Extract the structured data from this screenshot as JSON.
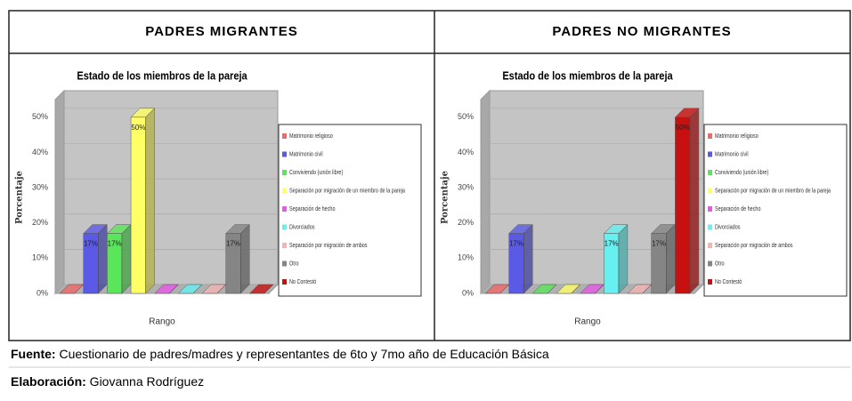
{
  "table": {
    "headers": [
      "PADRES MIGRANTES",
      "PADRES NO MIGRANTES"
    ],
    "charts": [
      {
        "chart_data": {
          "type": "bar3d",
          "title": "Estado de los miembros de la pareja",
          "x_label": "Rango",
          "y_label": "Porcentaje",
          "categories": [
            "Matrimonio religioso",
            "Matrimonio civil",
            "Conviviendo (unión libre)",
            "Separación por migración de un miembro de la pareja",
            "Separación de hecho",
            "Divorciados",
            "Separación por migración de ambos",
            "Otro",
            "No Contestó"
          ],
          "colors": [
            "#f06868",
            "#5a5ae6",
            "#5ae65a",
            "#ffff66",
            "#e65ae6",
            "#66f0f0",
            "#f4b4b4",
            "#858585",
            "#c81010"
          ],
          "values": [
            0,
            17,
            17,
            50,
            0,
            0,
            0,
            17,
            0
          ],
          "value_labels": [
            null,
            "17%",
            "17%",
            "50%",
            null,
            null,
            null,
            "17%",
            null
          ],
          "ylim": [
            0,
            55
          ],
          "yticks": [
            {
              "value": 0,
              "label": "0%"
            },
            {
              "value": 10,
              "label": "10%"
            },
            {
              "value": 20,
              "label": "20%"
            },
            {
              "value": 30,
              "label": "30%"
            },
            {
              "value": 40,
              "label": "40%"
            },
            {
              "value": 50,
              "label": "50%"
            }
          ],
          "grid": true
        }
      },
      {
        "chart_data": {
          "type": "bar3d",
          "title": "Estado de los miembros de la pareja",
          "x_label": "Rango",
          "y_label": "Porcentaje",
          "categories": [
            "Matrimonio religioso",
            "Matrimonio civil",
            "Conviviendo (unión libre)",
            "Separación por migración de un miembro de la pareja",
            "Separación de hecho",
            "Divorciados",
            "Separación por migración de ambos",
            "Otro",
            "No Contestó"
          ],
          "colors": [
            "#f06868",
            "#5a5ae6",
            "#5ae65a",
            "#ffff66",
            "#e65ae6",
            "#66f0f0",
            "#f4b4b4",
            "#858585",
            "#c81010"
          ],
          "values": [
            0,
            17,
            0,
            0,
            0,
            17,
            0,
            17,
            50
          ],
          "value_labels": [
            null,
            "17%",
            null,
            null,
            null,
            "17%",
            null,
            "17%",
            "50%"
          ],
          "ylim": [
            0,
            55
          ],
          "yticks": [
            {
              "value": 0,
              "label": "0%"
            },
            {
              "value": 10,
              "label": "10%"
            },
            {
              "value": 20,
              "label": "20%"
            },
            {
              "value": 30,
              "label": "30%"
            },
            {
              "value": 40,
              "label": "40%"
            },
            {
              "value": 50,
              "label": "50%"
            }
          ],
          "grid": true
        }
      }
    ]
  },
  "footer": {
    "source_label": "Fuente:",
    "source_text": " Cuestionario de padres/madres y representantes  de 6to y 7mo año de Educación Básica",
    "author_label": "Elaboración:",
    "author_text": " Giovanna Rodríguez"
  }
}
